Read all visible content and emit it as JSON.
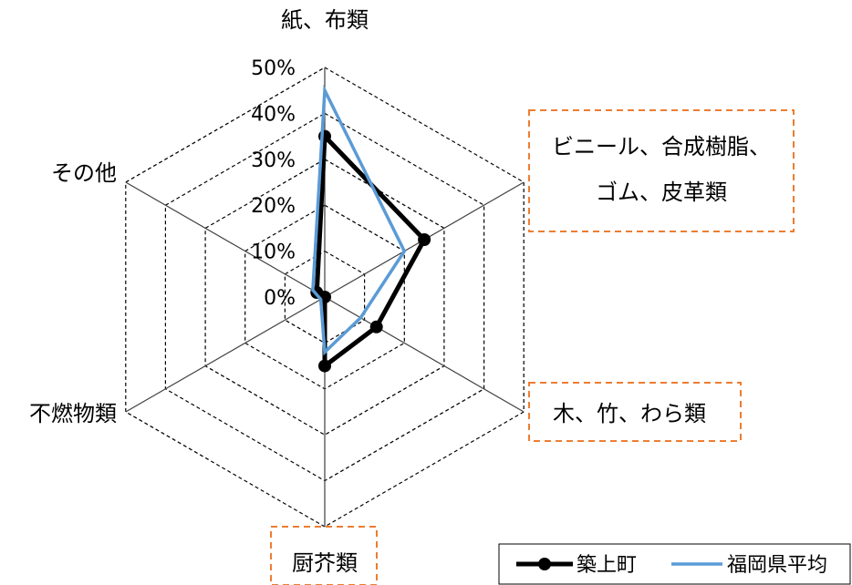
{
  "chart_data": {
    "type": "radar",
    "categories": [
      "紙、布類",
      "ビニール、合成樹脂、ゴム、皮革類",
      "木、竹、わら類",
      "厨芥類",
      "不燃物類",
      "その他"
    ],
    "category_lines": [
      [
        "紙、布類"
      ],
      [
        "ビニール、合成樹脂、",
        "ゴム、皮革類"
      ],
      [
        "木、竹、わら類"
      ],
      [
        "厨芥類"
      ],
      [
        "不燃物類"
      ],
      [
        "その他"
      ]
    ],
    "highlighted_categories": [
      1,
      2,
      3
    ],
    "ticks": [
      "0%",
      "10%",
      "20%",
      "30%",
      "40%",
      "50%"
    ],
    "tick_values": [
      0,
      10,
      20,
      30,
      40,
      50
    ],
    "rlim": [
      0,
      50
    ],
    "grid": "dashed hexagon",
    "legend_position": "bottom-right",
    "series": [
      {
        "name": "築上町",
        "color": "#000000",
        "marker": "circle",
        "values": [
          35,
          25,
          13,
          15,
          0,
          2
        ]
      },
      {
        "name": "福岡県平均",
        "color": "#5b9bd5",
        "marker": "none",
        "values": [
          45,
          20,
          9,
          12,
          1,
          3
        ]
      }
    ],
    "colors": {
      "highlight_box": "#ed7d31",
      "grid": "#000000",
      "axis": "#404040"
    }
  }
}
